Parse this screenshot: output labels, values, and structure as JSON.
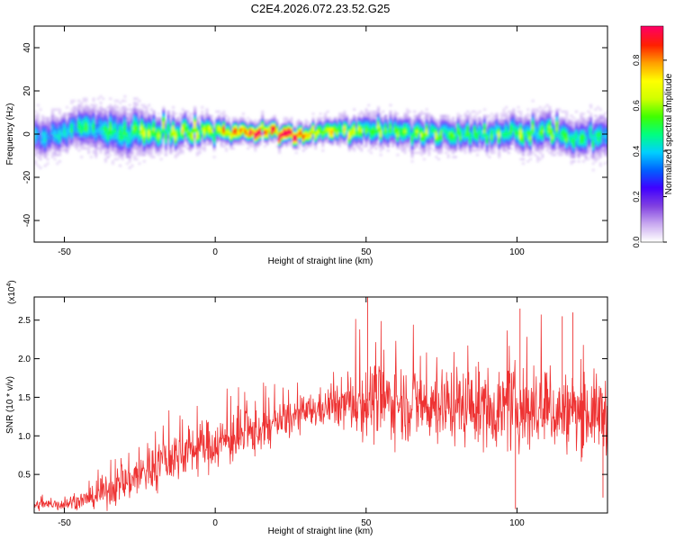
{
  "figure_title": "C2E4.2026.072.23.52.G25",
  "chart_data": [
    {
      "type": "heatmap",
      "xlabel": "Height of straight line (km)",
      "ylabel": "Frequency (Hz)",
      "xlim": [
        -60,
        130
      ],
      "ylim": [
        -50,
        50
      ],
      "xticks": [
        -50,
        0,
        50,
        100
      ],
      "yticks": [
        -40,
        -20,
        0,
        20,
        40
      ],
      "xtick_labels": [
        "-50",
        "0",
        "50",
        "100"
      ],
      "ytick_labels": [
        "-40",
        "-20",
        "0",
        "20",
        "40"
      ],
      "colorbar": {
        "label": "Normalized spectral amplitude",
        "range": [
          0,
          0.95
        ],
        "ticks": [
          0.0,
          0.2,
          0.4,
          0.6,
          0.8
        ],
        "tick_labels": [
          "0.0",
          "0.2",
          "0.4",
          "0.6",
          "0.8"
        ],
        "colormap": [
          "#ffffff",
          "#c8a8f0",
          "#8040e0",
          "#4000ff",
          "#0060ff",
          "#00d0ff",
          "#00ff80",
          "#40ff00",
          "#d0ff00",
          "#ffff00",
          "#ffa000",
          "#ff2000",
          "#ff0060"
        ]
      },
      "ridge": {
        "x": [
          -60,
          -50,
          -40,
          -30,
          -20,
          -10,
          0,
          10,
          20,
          30,
          40,
          50,
          60,
          70,
          80,
          90,
          100,
          110,
          120,
          130
        ],
        "center_freq_hz": [
          -2,
          1,
          2,
          0,
          1,
          1,
          1,
          1,
          0,
          -1,
          1,
          2,
          1,
          0,
          0,
          -1,
          1,
          0,
          -2,
          -1
        ],
        "half_width_hz": [
          8,
          7,
          8,
          9,
          7,
          6,
          5,
          4,
          4,
          4,
          5,
          6,
          6,
          6,
          6,
          6,
          7,
          7,
          7,
          8
        ],
        "peak_amplitude": [
          0.35,
          0.4,
          0.45,
          0.5,
          0.55,
          0.6,
          0.7,
          0.85,
          0.92,
          0.8,
          0.6,
          0.55,
          0.5,
          0.55,
          0.5,
          0.5,
          0.55,
          0.5,
          0.45,
          0.4
        ]
      }
    },
    {
      "type": "line",
      "xlabel": "Height of straight line (km)",
      "ylabel": "SNR (10 * v/v)",
      "y_multiplier_label": "(x10",
      "y_multiplier_exp": "4",
      "y_multiplier_close": ")",
      "xlim": [
        -60,
        130
      ],
      "ylim": [
        0,
        2.8
      ],
      "xticks": [
        -50,
        0,
        50,
        100
      ],
      "yticks": [
        0.5,
        1.0,
        1.5,
        2.0,
        2.5
      ],
      "xtick_labels": [
        "-50",
        "0",
        "50",
        "100"
      ],
      "ytick_labels": [
        "0.5",
        "1.0",
        "1.5",
        "2.0",
        "2.5"
      ],
      "line_color": "#ee3333",
      "trend": {
        "x": [
          -60,
          -50,
          -40,
          -30,
          -20,
          -10,
          0,
          10,
          20,
          30,
          40,
          50,
          60,
          70,
          80,
          90,
          100,
          110,
          120,
          130
        ],
        "mean": [
          0.1,
          0.12,
          0.2,
          0.4,
          0.6,
          0.8,
          0.9,
          1.0,
          1.15,
          1.3,
          1.4,
          1.45,
          1.45,
          1.4,
          1.4,
          1.35,
          1.35,
          1.3,
          1.3,
          1.3
        ],
        "spread": [
          0.06,
          0.08,
          0.12,
          0.25,
          0.3,
          0.3,
          0.3,
          0.3,
          0.25,
          0.2,
          0.25,
          0.45,
          0.45,
          0.45,
          0.45,
          0.45,
          0.5,
          0.45,
          0.45,
          0.45
        ]
      },
      "spikes": [
        {
          "x": 50.5,
          "y": 2.8
        },
        {
          "x": 99.5,
          "y": 0.05
        },
        {
          "x": 101,
          "y": 2.65
        },
        {
          "x": 115,
          "y": 2.55
        },
        {
          "x": 118.5,
          "y": 2.6
        },
        {
          "x": 128.5,
          "y": 0.2
        }
      ]
    }
  ]
}
